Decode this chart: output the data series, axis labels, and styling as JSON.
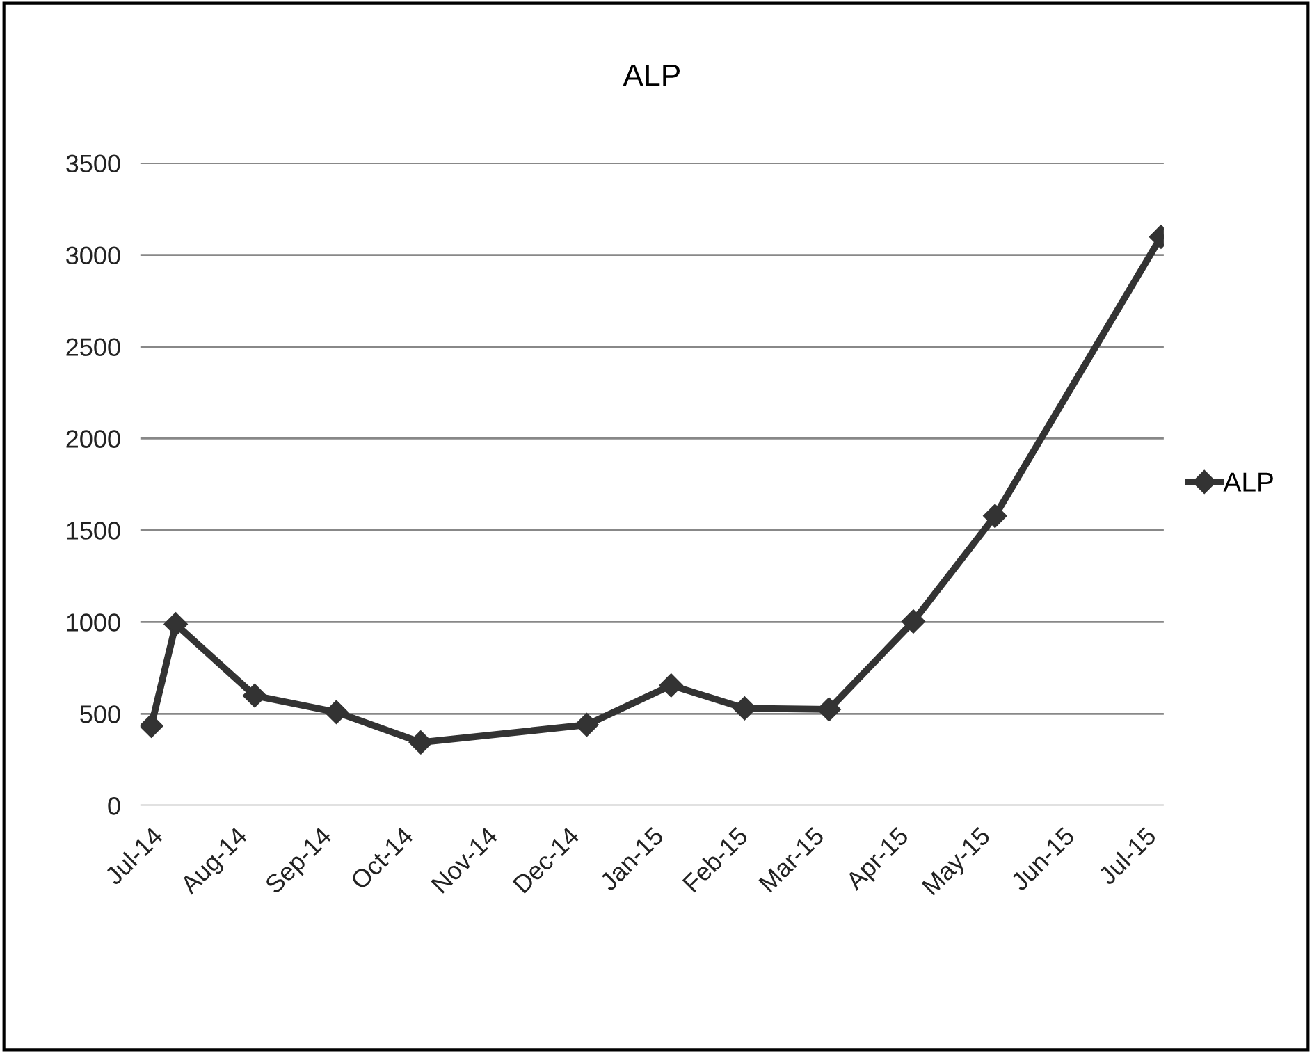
{
  "chart_data": {
    "type": "line",
    "title": "ALP",
    "x": [
      "2014-07-01",
      "2014-07-10",
      "2014-08-08",
      "2014-09-07",
      "2014-10-08",
      "2014-12-08",
      "2015-01-08",
      "2015-02-04",
      "2015-03-07",
      "2015-04-07",
      "2015-05-07",
      "2015-07-07"
    ],
    "series": [
      {
        "name": "ALP",
        "color": "#333333",
        "values": [
          434,
          988,
          599,
          509,
          344,
          440,
          655,
          530,
          524,
          1003,
          1578,
          3099
        ]
      }
    ],
    "xlim": [
      "2014-06-27",
      "2015-07-08"
    ],
    "xticks": [
      {
        "value": "2014-07-01",
        "label": "Jul-14"
      },
      {
        "value": "2014-08-01",
        "label": "Aug-14"
      },
      {
        "value": "2014-09-01",
        "label": "Sep-14"
      },
      {
        "value": "2014-10-01",
        "label": "Oct-14"
      },
      {
        "value": "2014-11-01",
        "label": "Nov-14"
      },
      {
        "value": "2014-12-01",
        "label": "Dec-14"
      },
      {
        "value": "2015-01-01",
        "label": "Jan-15"
      },
      {
        "value": "2015-02-01",
        "label": "Feb-15"
      },
      {
        "value": "2015-03-01",
        "label": "Mar-15"
      },
      {
        "value": "2015-04-01",
        "label": "Apr-15"
      },
      {
        "value": "2015-05-01",
        "label": "May-15"
      },
      {
        "value": "2015-06-01",
        "label": "Jun-15"
      },
      {
        "value": "2015-07-01",
        "label": "Jul-15"
      }
    ],
    "ylim": [
      0,
      3500
    ],
    "yticks": [
      0,
      500,
      1000,
      1500,
      2000,
      2500,
      3000,
      3500
    ],
    "grid": "y",
    "legend": "right",
    "marker": "diamond",
    "line_style": "solid"
  }
}
